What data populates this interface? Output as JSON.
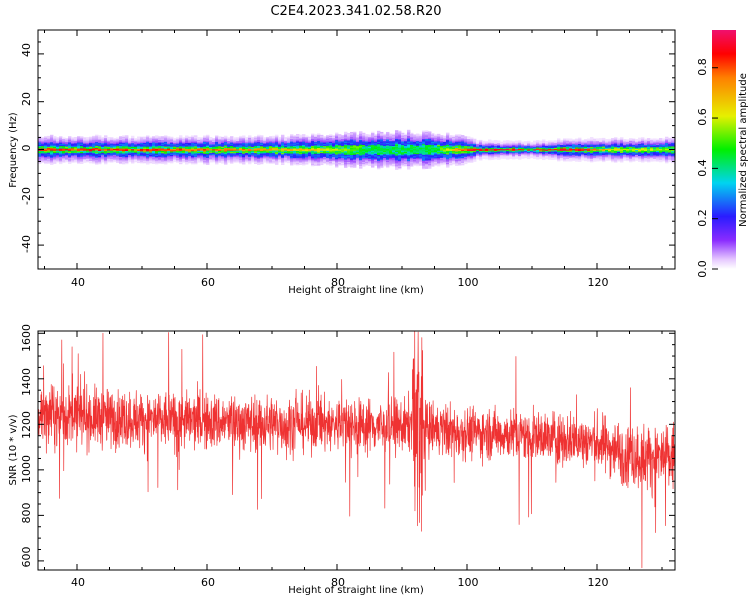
{
  "figure": {
    "title": "C2E4.2023.341.02.58.R20"
  },
  "chart_data": [
    {
      "type": "heatmap",
      "xlabel": "Height of straight line (km)",
      "ylabel": "Frequency (Hz)",
      "xlim": [
        34,
        132
      ],
      "ylim": [
        -50,
        50
      ],
      "xticks": [
        "40",
        "60",
        "80",
        "100",
        "120"
      ],
      "yticks": [
        "40",
        "20",
        "0",
        "-20",
        "-40"
      ],
      "xtick_values": [
        40,
        60,
        80,
        100,
        120
      ],
      "ytick_values": [
        40,
        20,
        0,
        -20,
        -40
      ],
      "colorbar": {
        "label": "Normalized spectral amplitude",
        "range": [
          0,
          0.95
        ],
        "ticks": [
          "0.0",
          "0.2",
          "0.4",
          "0.6",
          "0.8"
        ],
        "tick_values": [
          0.0,
          0.2,
          0.4,
          0.6,
          0.8
        ],
        "colormap": "rainbow (white-purple-blue-cyan-green-yellow-red-magenta)"
      },
      "band": {
        "center_freq": 0,
        "halfwidth_hz": [
          {
            "x": 34,
            "value": 4
          },
          {
            "x": 70,
            "value": 4
          },
          {
            "x": 80,
            "value": 5
          },
          {
            "x": 90,
            "value": 6
          },
          {
            "x": 98,
            "value": 5
          },
          {
            "x": 102,
            "value": 2.5
          },
          {
            "x": 110,
            "value": 2
          },
          {
            "x": 116,
            "value": 3
          },
          {
            "x": 132,
            "value": 3.5
          }
        ],
        "center_amplitude": [
          {
            "x": 34,
            "value": 0.85
          },
          {
            "x": 60,
            "value": 0.8
          },
          {
            "x": 78,
            "value": 0.65
          },
          {
            "x": 85,
            "value": 0.45
          },
          {
            "x": 95,
            "value": 0.45
          },
          {
            "x": 101,
            "value": 0.9
          },
          {
            "x": 118,
            "value": 0.9
          },
          {
            "x": 122,
            "value": 0.65
          },
          {
            "x": 132,
            "value": 0.55
          }
        ]
      }
    },
    {
      "type": "line",
      "xlabel": "Height of straight line (km)",
      "ylabel": "SNR (10 * v/v)",
      "xlim": [
        34,
        132
      ],
      "ylim": [
        560,
        1610
      ],
      "xticks": [
        "40",
        "60",
        "80",
        "100",
        "120"
      ],
      "yticks": [
        "1600",
        "1400",
        "1200",
        "1000",
        "800",
        "600"
      ],
      "xtick_values": [
        40,
        60,
        80,
        100,
        120
      ],
      "ytick_values": [
        1600,
        1400,
        1200,
        1000,
        800,
        600
      ],
      "color": "#ef3232",
      "trend": [
        {
          "x": 34,
          "value": 1240
        },
        {
          "x": 60,
          "value": 1210
        },
        {
          "x": 80,
          "value": 1200
        },
        {
          "x": 91,
          "value": 1190
        },
        {
          "x": 92,
          "value": 1250
        },
        {
          "x": 93,
          "value": 1180
        },
        {
          "x": 110,
          "value": 1150
        },
        {
          "x": 120,
          "value": 1120
        },
        {
          "x": 126,
          "value": 1060
        },
        {
          "x": 132,
          "value": 1050
        }
      ],
      "spread": [
        {
          "x": 34,
          "value": 110
        },
        {
          "x": 90,
          "value": 100
        },
        {
          "x": 110,
          "value": 90
        },
        {
          "x": 124,
          "value": 110
        },
        {
          "x": 132,
          "value": 140
        }
      ],
      "extremes": [
        {
          "x": 44,
          "value": 1600
        },
        {
          "x": 92.5,
          "value": 1605
        },
        {
          "x": 92.0,
          "value": 820
        },
        {
          "x": 93.0,
          "value": 730
        },
        {
          "x": 126.9,
          "value": 570
        },
        {
          "x": 108,
          "value": 760
        }
      ]
    }
  ]
}
